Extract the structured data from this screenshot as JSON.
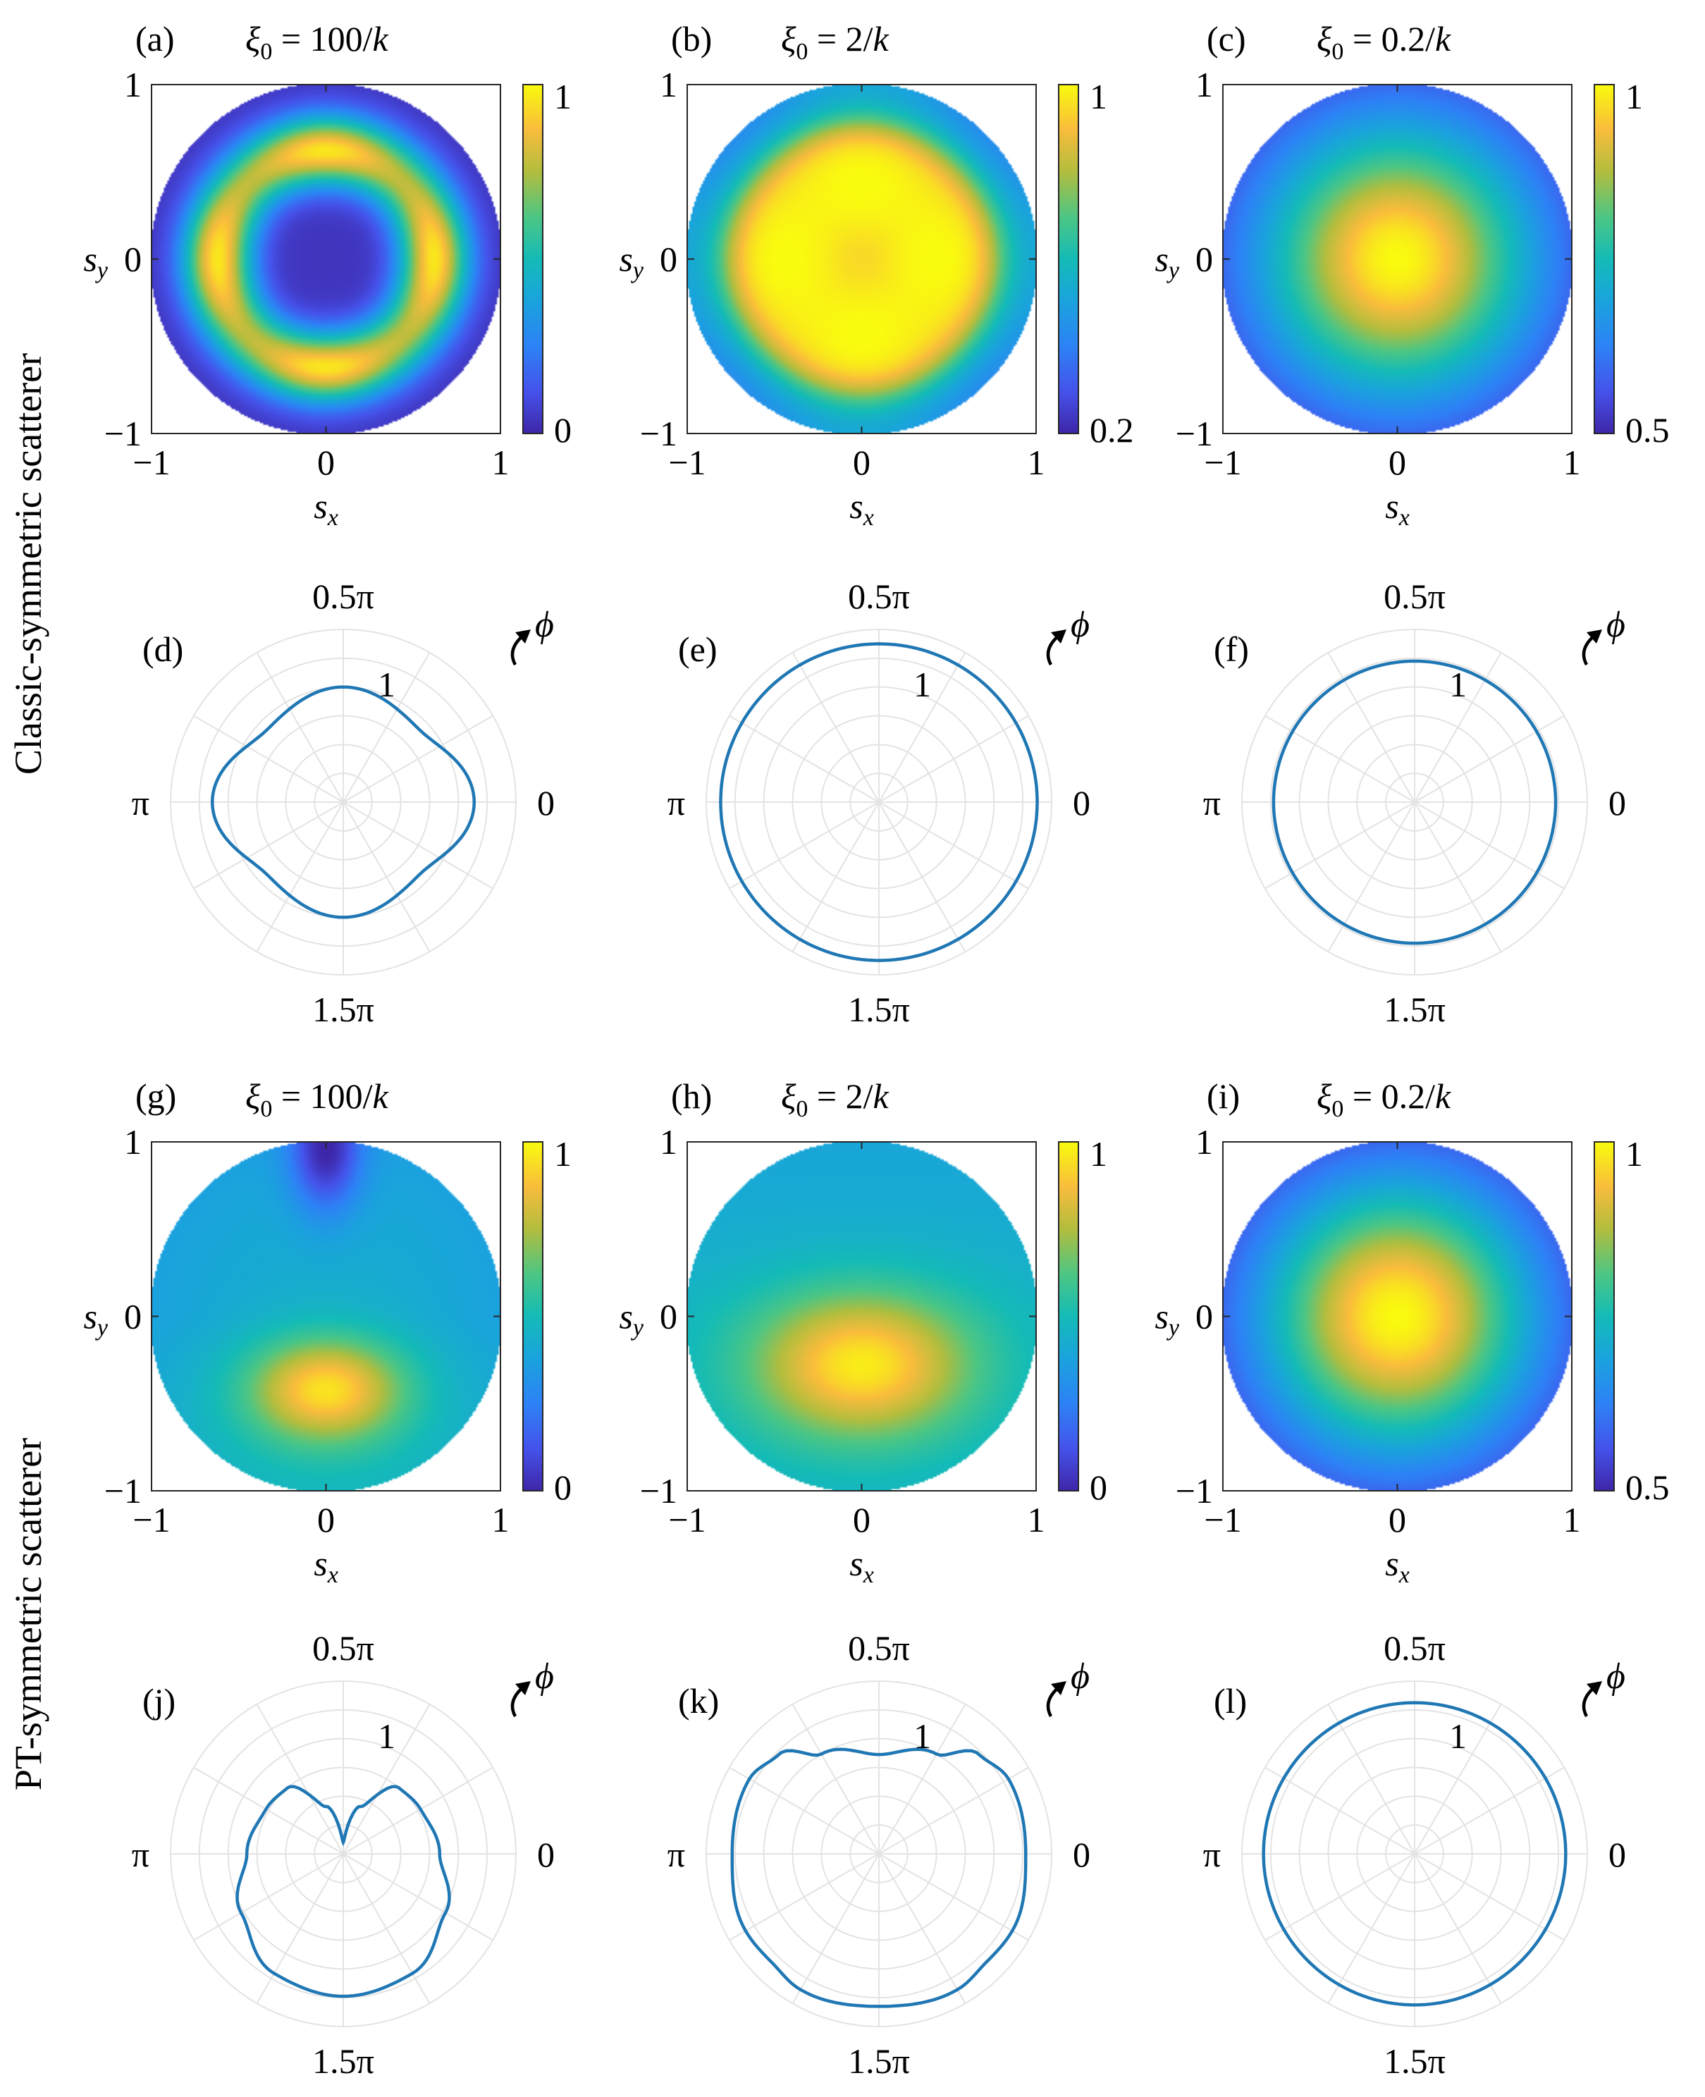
{
  "row_labels": [
    "Classic-symmetric scatterer",
    "PT-symmetric scatterer"
  ],
  "chart_data": [
    {
      "type": "heatmap",
      "label": "(a)",
      "xi0": "100",
      "sub": "0",
      "unit": "/k",
      "cmin": "0",
      "cmax": "1",
      "pattern": "classic-100",
      "xlabel": "s",
      "xsub": "x",
      "ylabel": "s",
      "ysub": "y",
      "xticks": [
        "−1",
        "0",
        "1"
      ],
      "yticks": [
        "−1",
        "0",
        "1"
      ],
      "xlim": [
        -1,
        1
      ],
      "ylim": [
        -1,
        1
      ]
    },
    {
      "type": "heatmap",
      "label": "(b)",
      "xi0": "2",
      "sub": "0",
      "unit": "/k",
      "cmin": "0.2",
      "cmax": "1",
      "pattern": "classic-2",
      "xlabel": "s",
      "xsub": "x",
      "ylabel": "s",
      "ysub": "y",
      "xticks": [
        "−1",
        "0",
        "1"
      ],
      "yticks": [
        "−1",
        "0",
        "1"
      ],
      "xlim": [
        -1,
        1
      ],
      "ylim": [
        -1,
        1
      ]
    },
    {
      "type": "heatmap",
      "label": "(c)",
      "xi0": "0.2",
      "sub": "0",
      "unit": "/k",
      "cmin": "0.5",
      "cmax": "1",
      "pattern": "gauss",
      "xlabel": "s",
      "xsub": "x",
      "ylabel": "s",
      "ysub": "y",
      "xticks": [
        "−1",
        "0",
        "1"
      ],
      "yticks": [
        "−1",
        "0",
        "1"
      ],
      "xlim": [
        -1,
        1
      ],
      "ylim": [
        -1,
        1
      ]
    },
    {
      "type": "polar",
      "label": "(d)",
      "r_tick": "1",
      "phi_label": "ϕ",
      "theta_labels": [
        "0",
        "0.5π",
        "π",
        "1.5π"
      ],
      "rmax": 1.2,
      "theta_deg": [
        0,
        45,
        90,
        135,
        180,
        225,
        270,
        315,
        360
      ],
      "r": [
        0.91,
        0.73,
        0.8,
        0.73,
        0.91,
        0.73,
        0.8,
        0.73,
        0.91
      ]
    },
    {
      "type": "polar",
      "label": "(e)",
      "r_tick": "1",
      "phi_label": "ϕ",
      "theta_labels": [
        "0",
        "0.5π",
        "π",
        "1.5π"
      ],
      "rmax": 1.2,
      "theta_deg": [
        0,
        90,
        180,
        270,
        360
      ],
      "r": [
        1.1,
        1.1,
        1.1,
        1.1,
        1.1
      ]
    },
    {
      "type": "polar",
      "label": "(f)",
      "r_tick": "1",
      "phi_label": "ϕ",
      "theta_labels": [
        "0",
        "0.5π",
        "π",
        "1.5π"
      ],
      "rmax": 1.2,
      "theta_deg": [
        0,
        90,
        180,
        270,
        360
      ],
      "r": [
        0.98,
        0.98,
        0.98,
        0.98,
        0.98
      ]
    },
    {
      "type": "heatmap",
      "label": "(g)",
      "xi0": "100",
      "sub": "0",
      "unit": "/k",
      "cmin": "0",
      "cmax": "1",
      "pattern": "pt-100",
      "xlabel": "s",
      "xsub": "x",
      "ylabel": "s",
      "ysub": "y",
      "xticks": [
        "−1",
        "0",
        "1"
      ],
      "yticks": [
        "−1",
        "0",
        "1"
      ],
      "xlim": [
        -1,
        1
      ],
      "ylim": [
        -1,
        1
      ]
    },
    {
      "type": "heatmap",
      "label": "(h)",
      "xi0": "2",
      "sub": "0",
      "unit": "/k",
      "cmin": "0",
      "cmax": "1",
      "pattern": "pt-2",
      "xlabel": "s",
      "xsub": "x",
      "ylabel": "s",
      "ysub": "y",
      "xticks": [
        "−1",
        "0",
        "1"
      ],
      "yticks": [
        "−1",
        "0",
        "1"
      ],
      "xlim": [
        -1,
        1
      ],
      "ylim": [
        -1,
        1
      ]
    },
    {
      "type": "heatmap",
      "label": "(i)",
      "xi0": "0.2",
      "sub": "0",
      "unit": "/k",
      "cmin": "0.5",
      "cmax": "1",
      "pattern": "gauss",
      "xlabel": "s",
      "xsub": "x",
      "ylabel": "s",
      "ysub": "y",
      "xticks": [
        "−1",
        "0",
        "1"
      ],
      "yticks": [
        "−1",
        "0",
        "1"
      ],
      "xlim": [
        -1,
        1
      ],
      "ylim": [
        -1,
        1
      ]
    },
    {
      "type": "polar",
      "label": "(j)",
      "r_tick": "1",
      "phi_label": "ϕ",
      "theta_labels": [
        "0",
        "0.5π",
        "π",
        "1.5π"
      ],
      "rmax": 1.2,
      "theta_deg": [
        0,
        30,
        50,
        70,
        90,
        110,
        130,
        150,
        180,
        210,
        240,
        270,
        300,
        330,
        360
      ],
      "r": [
        0.67,
        0.62,
        0.6,
        0.35,
        0.08,
        0.35,
        0.6,
        0.62,
        0.67,
        0.82,
        0.96,
        0.99,
        0.96,
        0.82,
        0.67
      ]
    },
    {
      "type": "polar",
      "label": "(k)",
      "r_tick": "1",
      "phi_label": "ϕ",
      "theta_labels": [
        "0",
        "0.5π",
        "π",
        "1.5π"
      ],
      "rmax": 1.2,
      "theta_deg": [
        0,
        30,
        45,
        60,
        90,
        120,
        135,
        150,
        180,
        210,
        225,
        240,
        270,
        300,
        315,
        330,
        360
      ],
      "r": [
        1.02,
        1.04,
        0.98,
        0.8,
        0.69,
        0.8,
        0.98,
        1.04,
        1.02,
        1.07,
        1.06,
        1.09,
        1.06,
        1.09,
        1.06,
        1.07,
        1.02
      ]
    },
    {
      "type": "polar",
      "label": "(l)",
      "r_tick": "1",
      "phi_label": "ϕ",
      "theta_labels": [
        "0",
        "0.5π",
        "π",
        "1.5π"
      ],
      "rmax": 1.2,
      "theta_deg": [
        0,
        90,
        180,
        270,
        360
      ],
      "r": [
        1.05,
        1.05,
        1.05,
        1.05,
        1.05
      ]
    }
  ]
}
